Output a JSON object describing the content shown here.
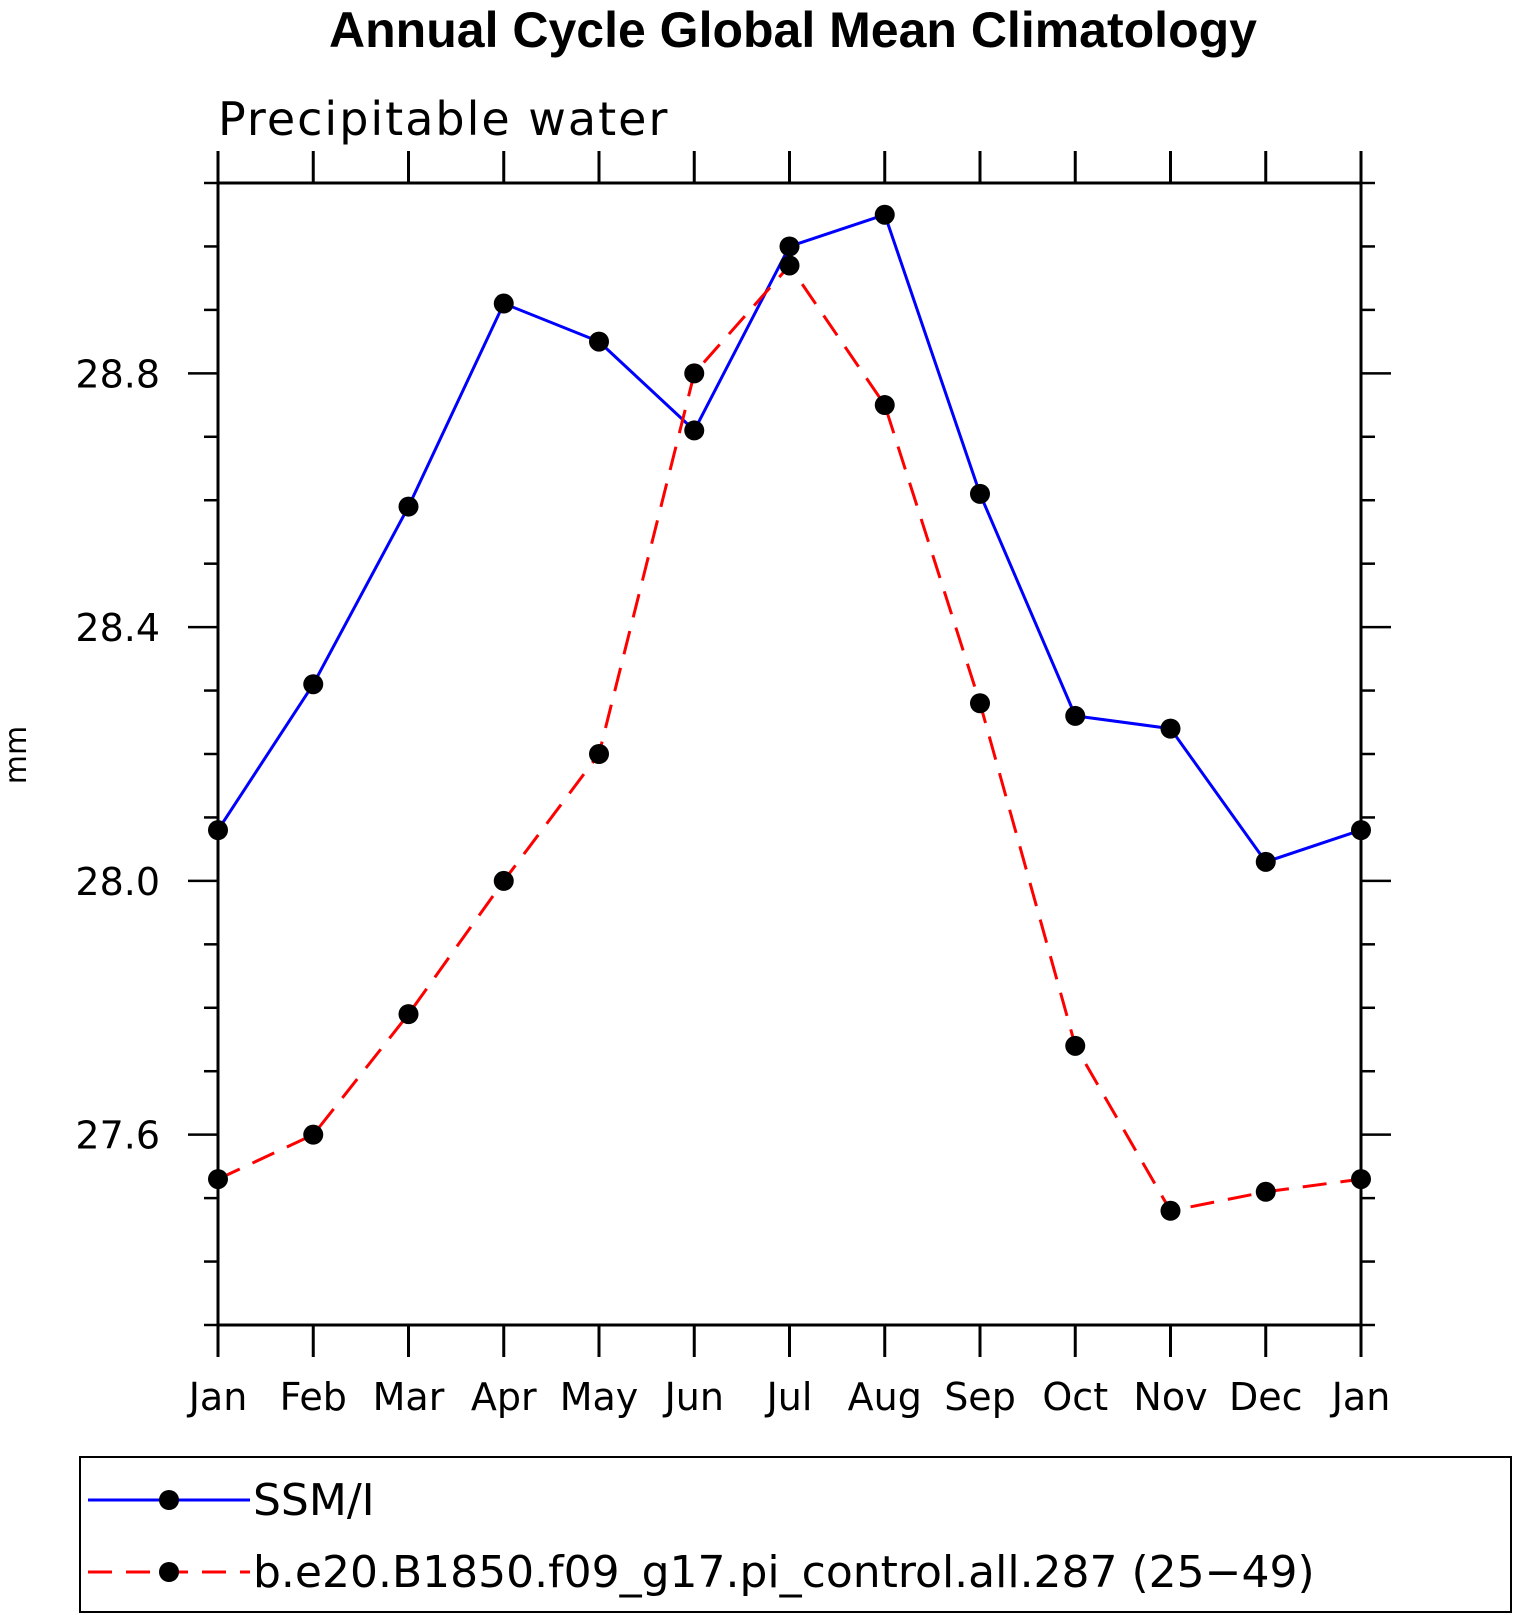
{
  "chart_data": {
    "type": "line",
    "title": "Annual Cycle Global Mean Climatology",
    "subtitle": "Precipitable water",
    "xlabel": "",
    "ylabel": "mm",
    "categories": [
      "Jan",
      "Feb",
      "Mar",
      "Apr",
      "May",
      "Jun",
      "Jul",
      "Aug",
      "Sep",
      "Oct",
      "Nov",
      "Dec",
      "Jan"
    ],
    "ylim": [
      27.3,
      29.1
    ],
    "yticks_major": [
      27.6,
      28.0,
      28.4,
      28.8
    ],
    "ytick_labels": [
      "27.6",
      "28.0",
      "28.4",
      "28.8"
    ],
    "yticks_minor_step": 0.1,
    "grid": false,
    "legend_position": "bottom",
    "series": [
      {
        "name": "SSM/I",
        "color": "#0000ff",
        "line_style": "solid",
        "marker": "filled-circle",
        "values": [
          28.08,
          28.31,
          28.59,
          28.91,
          28.85,
          28.71,
          29.0,
          29.05,
          28.61,
          28.26,
          28.24,
          28.03,
          28.08
        ]
      },
      {
        "name": "b.e20.B1850.f09_g17.pi_control.all.287 (25−49)",
        "color": "#ff0000",
        "line_style": "dashed",
        "marker": "filled-circle",
        "values": [
          27.53,
          27.6,
          27.79,
          28.0,
          28.2,
          28.8,
          28.97,
          28.75,
          28.28,
          27.74,
          27.48,
          27.51,
          27.53
        ]
      }
    ]
  }
}
